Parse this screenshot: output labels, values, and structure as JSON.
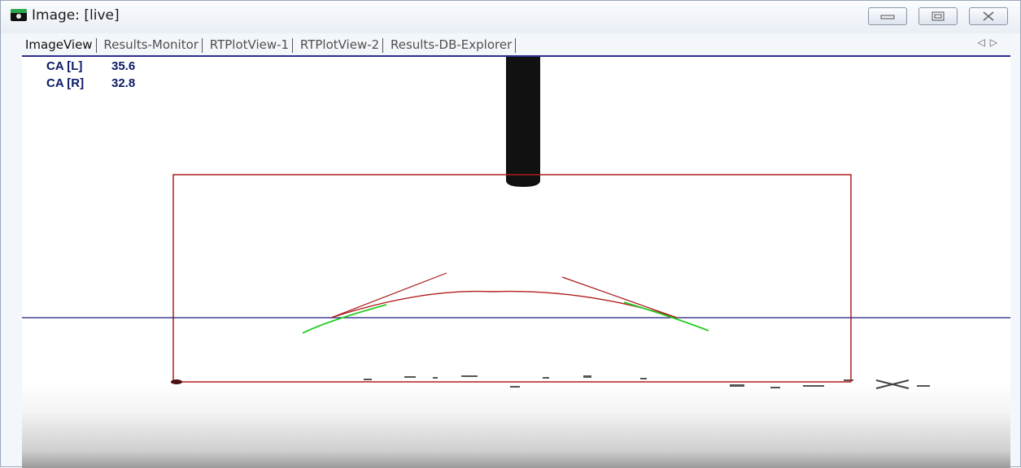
{
  "window": {
    "title": "Image: [live]",
    "icon": "camera-icon"
  },
  "tabs": [
    {
      "label": "ImageView",
      "active": true
    },
    {
      "label": "Results-Monitor",
      "active": false
    },
    {
      "label": "RTPlotView-1",
      "active": false
    },
    {
      "label": "RTPlotView-2",
      "active": false
    },
    {
      "label": "Results-DB-Explorer",
      "active": false
    }
  ],
  "tab_scroll": {
    "prev_icon": "triangle-left-icon",
    "next_icon": "triangle-right-icon"
  },
  "readouts": [
    {
      "label": "CA [L]",
      "value": "35.6"
    },
    {
      "label": "CA [R]",
      "value": "32.8"
    }
  ],
  "colors": {
    "roi": "#b01e1e",
    "baseline": "#1a1a7a",
    "fit": "#22cc22",
    "tangent": "#a81818"
  }
}
